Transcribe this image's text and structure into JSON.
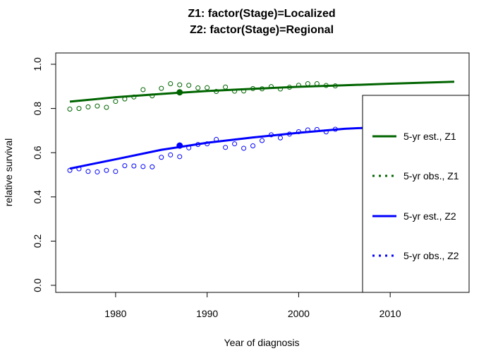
{
  "chart_data": {
    "type": "line",
    "title": [
      "Z1: factor(Stage)=Localized",
      "Z2: factor(Stage)=Regional"
    ],
    "xlabel": "Year of diagnosis",
    "ylabel": "relative survival",
    "xlim": [
      1975,
      2017
    ],
    "ylim": [
      0,
      1
    ],
    "x_ticks": [
      1980,
      1990,
      2000,
      2010
    ],
    "y_ticks": [
      0.0,
      0.2,
      0.4,
      0.6,
      0.8,
      1.0
    ],
    "x_tick_labels": [
      "1980",
      "1990",
      "2000",
      "2010"
    ],
    "y_tick_labels": [
      "0.0",
      "0.2",
      "0.4",
      "0.6",
      "0.8",
      "1.0"
    ],
    "legend_position": "right",
    "series": [
      {
        "name": "5-yr est., Z1",
        "kind": "line",
        "color": "#006400",
        "x": [
          1975,
          1980,
          1985,
          1990,
          1995,
          2000,
          2005,
          2010,
          2017
        ],
        "y": [
          0.831,
          0.851,
          0.866,
          0.879,
          0.889,
          0.898,
          0.905,
          0.912,
          0.921
        ]
      },
      {
        "name": "5-yr obs., Z1",
        "kind": "points",
        "color": "#006400",
        "x": [
          1975,
          1976,
          1977,
          1978,
          1979,
          1980,
          1981,
          1982,
          1983,
          1984,
          1985,
          1986,
          1987,
          1988,
          1989,
          1990,
          1991,
          1992,
          1993,
          1994,
          1995,
          1996,
          1997,
          1998,
          1999,
          2000,
          2001,
          2002,
          2003,
          2004
        ],
        "y": [
          0.797,
          0.8,
          0.807,
          0.811,
          0.805,
          0.832,
          0.843,
          0.852,
          0.885,
          0.857,
          0.891,
          0.912,
          0.907,
          0.905,
          0.893,
          0.894,
          0.877,
          0.897,
          0.878,
          0.879,
          0.89,
          0.889,
          0.899,
          0.888,
          0.896,
          0.905,
          0.912,
          0.912,
          0.904,
          0.902
        ]
      },
      {
        "name": "5-yr est., Z2",
        "kind": "line",
        "color": "#0000ff",
        "x": [
          1975,
          1977,
          1980,
          1985,
          1990,
          1995,
          2000,
          2005,
          2010,
          2017
        ],
        "y": [
          0.528,
          0.545,
          0.57,
          0.613,
          0.645,
          0.669,
          0.69,
          0.708,
          0.718,
          0.725
        ]
      },
      {
        "name": "5-yr obs., Z2",
        "kind": "points",
        "color": "#0000ff",
        "x": [
          1975,
          1976,
          1977,
          1978,
          1979,
          1980,
          1981,
          1982,
          1983,
          1984,
          1985,
          1986,
          1987,
          1988,
          1989,
          1990,
          1991,
          1992,
          1993,
          1994,
          1995,
          1996,
          1997,
          1998,
          1999,
          2000,
          2001,
          2002,
          2003,
          2004
        ],
        "y": [
          0.52,
          0.527,
          0.515,
          0.513,
          0.52,
          0.515,
          0.541,
          0.54,
          0.537,
          0.536,
          0.579,
          0.59,
          0.582,
          0.622,
          0.637,
          0.64,
          0.66,
          0.624,
          0.64,
          0.62,
          0.631,
          0.655,
          0.681,
          0.667,
          0.684,
          0.695,
          0.703,
          0.705,
          0.694,
          0.706
        ]
      }
    ],
    "highlight_points": [
      {
        "x": 1987,
        "y": 0.873,
        "color": "#006400"
      },
      {
        "x": 1987,
        "y": 0.632,
        "color": "#0000ff"
      }
    ]
  }
}
